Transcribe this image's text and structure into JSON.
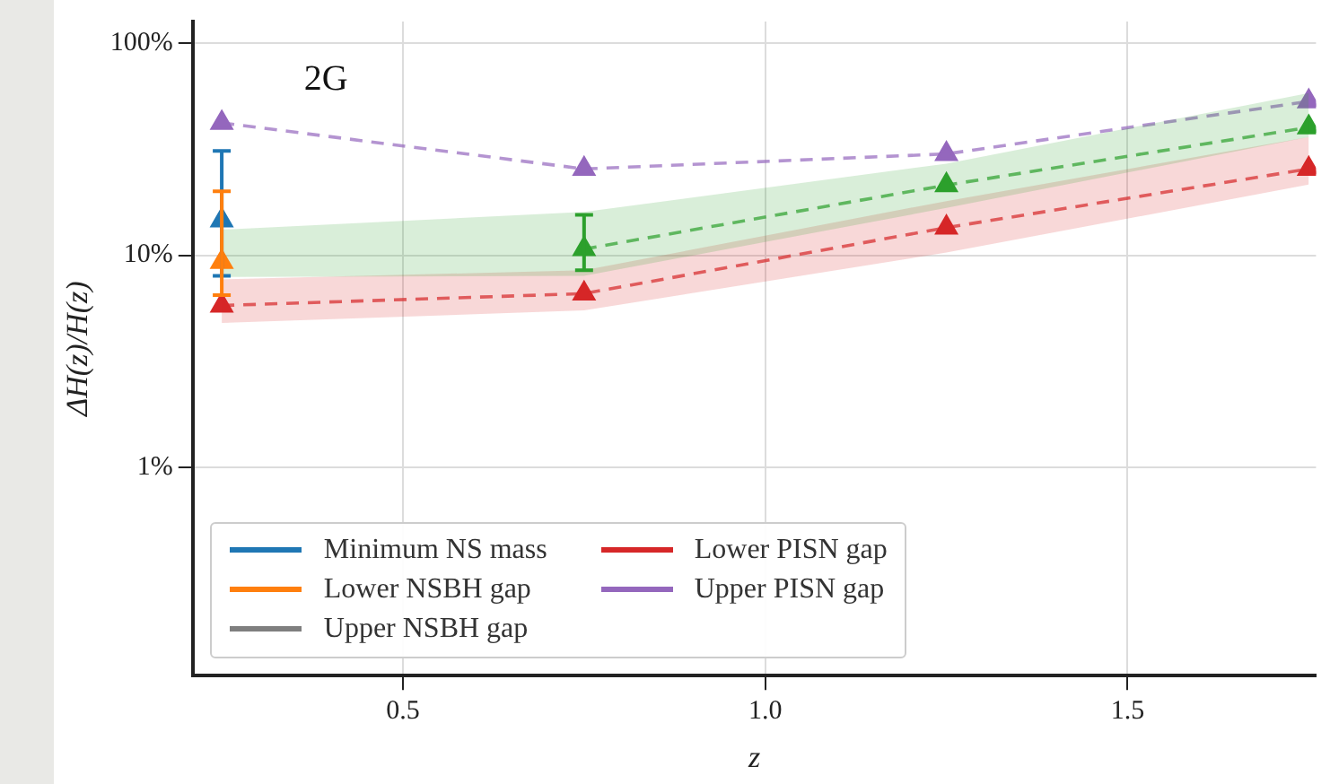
{
  "chart_data": {
    "type": "line",
    "xlabel": "z",
    "ylabel": "ΔH(z)/H(z)",
    "annotations": [
      "2G"
    ],
    "x": [
      0.25,
      0.75,
      1.25,
      1.75
    ],
    "xlim": [
      0.21,
      1.76
    ],
    "xticks": [
      0.5,
      {
        "value": 1,
        "label": "1.0"
      },
      1.5
    ],
    "ylim": [
      0.105,
      126
    ],
    "yticks": [
      {
        "value": 1,
        "label": "1%"
      },
      {
        "value": 10,
        "label": "10%"
      },
      {
        "value": 100,
        "label": "100%"
      }
    ],
    "log": "y",
    "grid": true,
    "legend": "bottom left",
    "marker": "triangle",
    "line_style": "dashed",
    "series": [
      {
        "name": "Minimum NS mass",
        "color": "#1f77b4",
        "values": [
          14.6,
          null,
          null,
          null
        ],
        "errors": [
          [
            8,
            31
          ],
          null,
          null,
          null
        ]
      },
      {
        "name": "Lower NSBH gap",
        "color": "#ff7f0e",
        "values": [
          9.3,
          null,
          null,
          null
        ],
        "errors": [
          [
            6.5,
            20
          ],
          null,
          null,
          null
        ]
      },
      {
        "name": "Upper NSBH gap",
        "color": "#7f7f7f",
        "values": [
          null,
          null,
          null,
          null
        ]
      },
      {
        "color": "#2ca02c",
        "values": [
          null,
          10.7,
          21.4,
          40
        ],
        "lower": [
          7.9,
          8,
          16.7,
          36
        ],
        "upper": [
          13.2,
          16,
          27,
          58
        ],
        "errors": [
          null,
          [
            8.5,
            15.5
          ],
          null,
          null
        ]
      },
      {
        "name": "Lower PISN gap",
        "color": "#d62728",
        "values": [
          5.8,
          6.6,
          13.5,
          25.5
        ],
        "lower": [
          4.8,
          5.5,
          10.3,
          21.5
        ],
        "upper": [
          7.7,
          8.5,
          18,
          36
        ]
      },
      {
        "name": "Upper PISN gap",
        "color": "#9467bd",
        "values": [
          42,
          25.5,
          30,
          53
        ]
      }
    ]
  }
}
